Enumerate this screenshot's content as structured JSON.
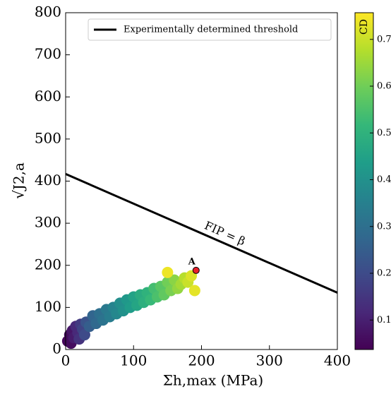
{
  "chart_data": {
    "type": "scatter",
    "xlabel": "Σh,max (MPa)",
    "ylabel": "√J2,a",
    "xlim": [
      0,
      400
    ],
    "ylim": [
      0,
      800
    ],
    "xticks": [
      0,
      100,
      200,
      300,
      400
    ],
    "yticks": [
      0,
      100,
      200,
      300,
      400,
      500,
      600,
      700,
      800
    ],
    "colormap": "viridis",
    "clim": [
      0.037,
      0.757
    ],
    "cticks": [
      0.1,
      0.2,
      0.3,
      0.4,
      0.5,
      0.6,
      0.7
    ],
    "clabel": "CD",
    "points": {
      "x": [
        3,
        6,
        8,
        10,
        12,
        15,
        18,
        20,
        22,
        25,
        28,
        30,
        35,
        40,
        45,
        50,
        55,
        60,
        65,
        70,
        75,
        80,
        85,
        90,
        95,
        100,
        105,
        110,
        115,
        120,
        125,
        130,
        135,
        140,
        145,
        150,
        155,
        160,
        165,
        170,
        175,
        180,
        185,
        150,
        190
      ],
      "y": [
        20,
        35,
        15,
        45,
        28,
        55,
        40,
        25,
        60,
        48,
        35,
        65,
        55,
        80,
        62,
        85,
        70,
        95,
        78,
        100,
        85,
        110,
        92,
        118,
        100,
        125,
        105,
        130,
        112,
        135,
        118,
        145,
        125,
        150,
        130,
        160,
        140,
        165,
        145,
        155,
        170,
        160,
        175,
        183,
        140
      ],
      "c": [
        0.05,
        0.06,
        0.06,
        0.08,
        0.09,
        0.12,
        0.12,
        0.14,
        0.16,
        0.18,
        0.2,
        0.22,
        0.25,
        0.27,
        0.28,
        0.3,
        0.31,
        0.33,
        0.34,
        0.36,
        0.37,
        0.39,
        0.4,
        0.42,
        0.43,
        0.45,
        0.46,
        0.48,
        0.49,
        0.5,
        0.52,
        0.54,
        0.55,
        0.57,
        0.58,
        0.6,
        0.61,
        0.63,
        0.64,
        0.66,
        0.68,
        0.7,
        0.72,
        0.74,
        0.73
      ]
    },
    "series": [
      {
        "name": "Experimentally determined threshold",
        "color": "#000000",
        "x": [
          0,
          400
        ],
        "values": [
          417,
          135
        ]
      }
    ],
    "marker": {
      "label": "A",
      "x": 192,
      "y": 188,
      "color": "#e8202a"
    },
    "annotation": {
      "text": "FIP = β",
      "x": 205,
      "y": 295
    },
    "legend": "upper right"
  }
}
